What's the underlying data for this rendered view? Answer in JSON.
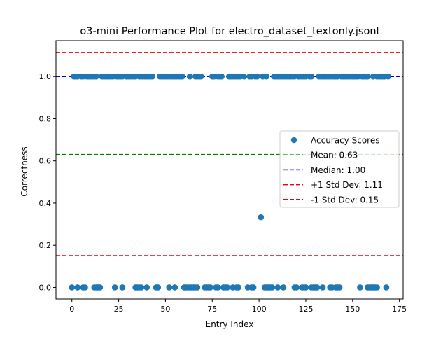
{
  "chart_data": {
    "type": "scatter",
    "title": "o3-mini Performance Plot for electro_dataset_textonly.jsonl",
    "xlabel": "Entry Index",
    "ylabel": "Correctness",
    "xlim": [
      -8.5,
      177
    ],
    "ylim": [
      -0.055,
      1.17
    ],
    "xticks": [
      0,
      25,
      50,
      75,
      100,
      125,
      150,
      175
    ],
    "xtick_labels": [
      "0",
      "25",
      "50",
      "75",
      "100",
      "125",
      "150",
      "175"
    ],
    "yticks": [
      0.0,
      0.2,
      0.4,
      0.6,
      0.8,
      1.0
    ],
    "ytick_labels": [
      "0.0",
      "0.2",
      "0.4",
      "0.6",
      "0.8",
      "1.0"
    ],
    "grid": false,
    "legend_position": "center-right",
    "colors": {
      "points": "#1f77b4",
      "mean": "#008000",
      "median": "#0000cc",
      "std": "#e8000b"
    },
    "series": [
      {
        "name": "Accuracy Scores",
        "marker": "circle",
        "points_high": {
          "y": 1.0,
          "x": [
            1,
            2,
            3,
            5,
            6,
            8,
            9,
            10,
            11,
            12,
            13,
            16,
            17,
            18,
            19,
            20,
            21,
            22,
            24,
            25,
            26,
            27,
            29,
            30,
            31,
            32,
            33,
            34,
            36,
            37,
            38,
            39,
            40,
            41,
            42,
            43,
            47,
            48,
            49,
            50,
            51,
            52,
            53,
            54,
            55,
            56,
            57,
            58,
            59,
            63,
            66,
            67,
            68,
            69,
            75,
            76,
            78,
            79,
            80,
            84,
            85,
            86,
            87,
            88,
            89,
            90,
            92,
            95,
            96,
            98,
            99,
            102,
            104,
            108,
            109,
            110,
            111,
            112,
            113,
            114,
            115,
            116,
            117,
            118,
            119,
            121,
            122,
            123,
            124,
            125,
            127,
            128,
            132,
            133,
            134,
            135,
            136,
            137,
            138,
            139,
            140,
            141,
            142,
            144,
            145,
            146,
            147,
            148,
            149,
            150,
            151,
            152,
            153,
            155,
            156,
            157,
            158,
            161,
            163,
            164,
            165,
            166,
            167,
            169
          ]
        },
        "points_mid": {
          "y": 0.333,
          "x": [
            101
          ]
        },
        "points_low": {
          "y": 0.0,
          "x": [
            0,
            3,
            6,
            7,
            12,
            13,
            14,
            15,
            23,
            27,
            34,
            35,
            36,
            37,
            40,
            45,
            46,
            52,
            55,
            60,
            61,
            62,
            63,
            64,
            65,
            66,
            67,
            71,
            72,
            73,
            74,
            77,
            78,
            81,
            82,
            83,
            86,
            88,
            89,
            94,
            96,
            97,
            103,
            104,
            105,
            106,
            107,
            110,
            113,
            119,
            120,
            123,
            124,
            125,
            128,
            129,
            130,
            131,
            134,
            138,
            139,
            141,
            142,
            143,
            154,
            158,
            159,
            160,
            161,
            162,
            163,
            168
          ]
        }
      }
    ],
    "reference_lines": [
      {
        "name": "Mean: 0.63",
        "value": 0.63,
        "color": "#008000"
      },
      {
        "name": "Median: 1.00",
        "value": 1.0,
        "color": "#0000cc"
      },
      {
        "name": "+1 Std Dev: 1.11",
        "value": 1.114,
        "color": "#e8000b"
      },
      {
        "name": "-1 Std Dev: 0.15",
        "value": 0.151,
        "color": "#e8000b"
      }
    ]
  }
}
